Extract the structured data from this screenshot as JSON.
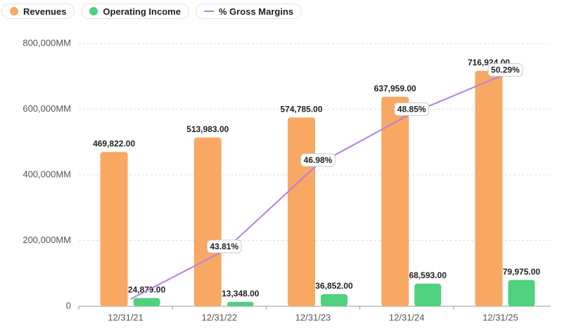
{
  "chart_data": {
    "type": "bar",
    "categories": [
      "12/31/21",
      "12/31/22",
      "12/31/23",
      "12/31/24",
      "12/31/25"
    ],
    "series": [
      {
        "name": "Revenues",
        "type": "bar",
        "color": "#f8a863",
        "values": [
          469822,
          513983,
          574785,
          637959,
          716924
        ],
        "value_labels": [
          "469,822.00",
          "513,983.00",
          "574,785.00",
          "637,959.00",
          "716,924.00"
        ]
      },
      {
        "name": "Operating Income",
        "type": "bar",
        "color": "#4fd17f",
        "values": [
          24879,
          13348,
          36852,
          68593,
          79975
        ],
        "value_labels": [
          "24,879.00",
          "13,348.00",
          "36,852.00",
          "68,593.00",
          "79,975.00"
        ]
      },
      {
        "name": "% Gross Margins",
        "type": "line",
        "axis": "y2",
        "color": "#b77fe0",
        "values": [
          42.03,
          43.81,
          46.98,
          48.85,
          50.29
        ],
        "value_labels": [
          null,
          "43.81%",
          "46.98%",
          "48.85%",
          "50.29%"
        ]
      }
    ],
    "ylim": [
      0,
      800000
    ],
    "yticks": [
      0,
      {
        "value": 200000,
        "label": "200,000MM"
      },
      {
        "value": 400000,
        "label": "400,000MM"
      },
      {
        "value": 600000,
        "label": "600,000MM"
      },
      {
        "value": 800000,
        "label": "800,000MM"
      }
    ],
    "y2lim": [
      41.77,
      51.41
    ],
    "grid": true
  }
}
